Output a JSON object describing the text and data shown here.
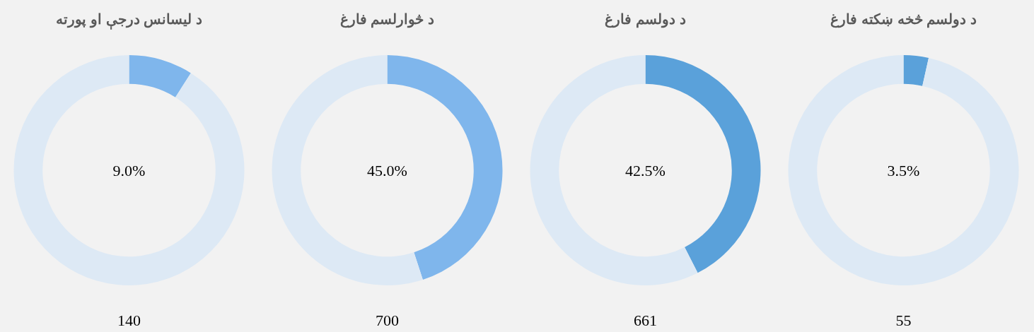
{
  "chart_data": [
    {
      "type": "donut",
      "title": "د لیسانس درجې او پورته",
      "categories": [
        null,
        null
      ],
      "values": [
        9.0,
        91.0
      ],
      "colors": [
        "#7fb6ec",
        "#dde9f5"
      ],
      "annotations": [
        "9.0%",
        "140"
      ]
    },
    {
      "type": "donut",
      "title": "د څوارلسم فارغ",
      "categories": [
        null,
        null
      ],
      "values": [
        45.0,
        55.0
      ],
      "colors": [
        "#7fb6ec",
        "#dde9f5"
      ],
      "annotations": [
        "45.0%",
        "700"
      ]
    },
    {
      "type": "donut",
      "title": "د دولسم فارغ",
      "categories": [
        null,
        null
      ],
      "values": [
        42.5,
        57.5
      ],
      "colors": [
        "#5aa1da",
        "#dde9f5"
      ],
      "annotations": [
        "42.5%",
        "661"
      ]
    },
    {
      "type": "donut",
      "title": "د دولسم څخه ښکته فارغ",
      "categories": [
        null,
        null
      ],
      "values": [
        3.5,
        96.5
      ],
      "colors": [
        "#5aa1da",
        "#dde9f5"
      ],
      "annotations": [
        "3.5%",
        "55"
      ]
    }
  ]
}
